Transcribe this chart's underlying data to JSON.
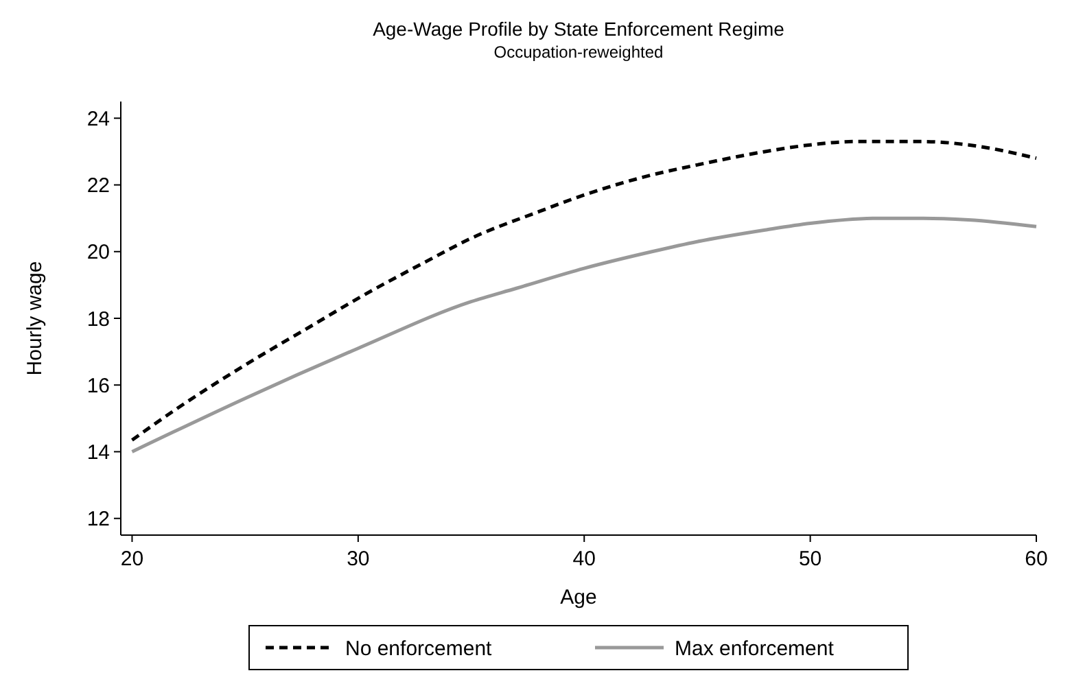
{
  "chart_data": {
    "type": "line",
    "title": "Age-Wage Profile by State Enforcement Regime",
    "subtitle": "Occupation-reweighted",
    "xlabel": "Age",
    "ylabel": "Hourly wage",
    "x": [
      20,
      22,
      25,
      28,
      30,
      33,
      35,
      38,
      40,
      43,
      45,
      48,
      50,
      52,
      55,
      57,
      60
    ],
    "series": [
      {
        "name": "No enforcement",
        "color": "#000000",
        "line_style": "dashed",
        "values": [
          14.35,
          15.3,
          16.6,
          17.8,
          18.6,
          19.7,
          20.4,
          21.2,
          21.7,
          22.3,
          22.6,
          23.0,
          23.2,
          23.3,
          23.3,
          23.2,
          22.8
        ]
      },
      {
        "name": "Max enforcement",
        "color": "#999999",
        "line_style": "solid",
        "x": [
          20,
          25,
          30,
          35,
          37,
          40,
          43,
          45,
          48,
          50,
          53,
          55,
          57,
          60
        ],
        "values": [
          14.0,
          15.6,
          17.1,
          18.5,
          18.9,
          19.5,
          20.0,
          20.3,
          20.65,
          20.85,
          21.0,
          21.0,
          20.95,
          20.75
        ]
      }
    ],
    "xlim": [
      19.5,
      60
    ],
    "xticks": [
      20,
      30,
      40,
      50,
      60
    ],
    "ylim": [
      11.5,
      24.5
    ],
    "yticks": [
      12,
      14,
      16,
      18,
      20,
      22,
      24
    ],
    "grid": false,
    "legend": "bottom"
  }
}
